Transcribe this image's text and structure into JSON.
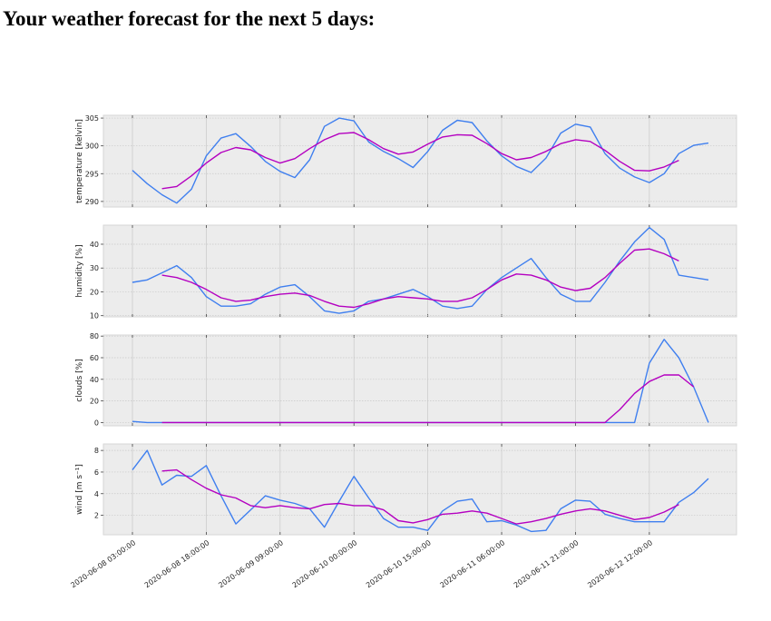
{
  "heading": "Your weather forecast for the next 5 days:",
  "colors": {
    "raw": "#3f7fef",
    "smoothed": "#b400c0",
    "panel_bg": "#ececec",
    "grid": "#c8c8c8"
  },
  "chart_data": {
    "type": "line",
    "x": [
      "2020-06-08 03:00:00",
      "2020-06-08 06:00:00",
      "2020-06-08 09:00:00",
      "2020-06-08 12:00:00",
      "2020-06-08 15:00:00",
      "2020-06-08 18:00:00",
      "2020-06-08 21:00:00",
      "2020-06-09 00:00:00",
      "2020-06-09 03:00:00",
      "2020-06-09 06:00:00",
      "2020-06-09 09:00:00",
      "2020-06-09 12:00:00",
      "2020-06-09 15:00:00",
      "2020-06-09 18:00:00",
      "2020-06-09 21:00:00",
      "2020-06-10 00:00:00",
      "2020-06-10 03:00:00",
      "2020-06-10 06:00:00",
      "2020-06-10 09:00:00",
      "2020-06-10 12:00:00",
      "2020-06-10 15:00:00",
      "2020-06-10 18:00:00",
      "2020-06-10 21:00:00",
      "2020-06-11 00:00:00",
      "2020-06-11 03:00:00",
      "2020-06-11 06:00:00",
      "2020-06-11 09:00:00",
      "2020-06-11 12:00:00",
      "2020-06-11 15:00:00",
      "2020-06-11 18:00:00",
      "2020-06-11 21:00:00",
      "2020-06-12 00:00:00",
      "2020-06-12 03:00:00",
      "2020-06-12 06:00:00",
      "2020-06-12 09:00:00",
      "2020-06-12 12:00:00",
      "2020-06-12 15:00:00",
      "2020-06-12 18:00:00",
      "2020-06-12 21:00:00",
      "2020-06-13 00:00:00"
    ],
    "xtick_labels": [
      "2020-06-08 03:00:00",
      "2020-06-08 18:00:00",
      "2020-06-09 09:00:00",
      "2020-06-10 00:00:00",
      "2020-06-10 15:00:00",
      "2020-06-11 06:00:00",
      "2020-06-11 21:00:00",
      "2020-06-12 12:00:00"
    ],
    "xtick_index": [
      0,
      5,
      10,
      15,
      20,
      25,
      30,
      35
    ],
    "grid": true,
    "subplots": [
      {
        "ylabel": "temperature [kelvin]",
        "ylim": [
          289,
          305.5
        ],
        "yticks": [
          290,
          295,
          300,
          305
        ],
        "raw": [
          295.6,
          293.2,
          291.2,
          289.7,
          292.2,
          298.2,
          301.4,
          302.2,
          299.9,
          297.2,
          295.4,
          294.3,
          297.5,
          303.5,
          305.0,
          304.5,
          300.7,
          299.0,
          297.7,
          296.1,
          299.0,
          302.8,
          304.6,
          304.2,
          300.9,
          298.2,
          296.3,
          295.2,
          297.8,
          302.3,
          303.9,
          303.4,
          298.6,
          296.0,
          294.4,
          293.4,
          295.0,
          298.6,
          300.1,
          300.5
        ],
        "smoothed": [
          null,
          null,
          292.3,
          292.7,
          294.6,
          296.9,
          298.8,
          299.7,
          299.3,
          297.9,
          296.9,
          297.7,
          299.5,
          301.1,
          302.2,
          302.4,
          301.1,
          299.5,
          298.5,
          298.9,
          300.3,
          301.6,
          302.0,
          301.9,
          300.4,
          298.6,
          297.5,
          297.9,
          299.0,
          300.4,
          301.1,
          300.8,
          299.2,
          297.2,
          295.6,
          295.5,
          296.2,
          297.4,
          null,
          null
        ]
      },
      {
        "ylabel": "humidity [%]",
        "ylim": [
          9.5,
          48
        ],
        "yticks": [
          10,
          20,
          30,
          40
        ],
        "raw": [
          24,
          25,
          28,
          31,
          26,
          18,
          14,
          14,
          15,
          19,
          22,
          23,
          18,
          12,
          11,
          12,
          16,
          17,
          19,
          21,
          18,
          14,
          13,
          14,
          21,
          26,
          30,
          34,
          26,
          19,
          16,
          16,
          24,
          33,
          41,
          47,
          42,
          27,
          26,
          25
        ],
        "smoothed": [
          null,
          null,
          27,
          26,
          24,
          21,
          17.5,
          16,
          16.5,
          18,
          19,
          19.5,
          18.5,
          16,
          14,
          13.5,
          15,
          17,
          18,
          17.5,
          17,
          16,
          16,
          17.5,
          21,
          25,
          27.5,
          27,
          25,
          22,
          20.5,
          21.5,
          26,
          32,
          37.5,
          38,
          36,
          33,
          null,
          null
        ]
      },
      {
        "ylabel": "clouds [%]",
        "ylim": [
          -3,
          81
        ],
        "yticks": [
          0,
          20,
          40,
          60,
          80
        ],
        "raw": [
          1,
          0,
          0,
          0,
          0,
          0,
          0,
          0,
          0,
          0,
          0,
          0,
          0,
          0,
          0,
          0,
          0,
          0,
          0,
          0,
          0,
          0,
          0,
          0,
          0,
          0,
          0,
          0,
          0,
          0,
          0,
          0,
          0,
          0,
          0,
          55,
          77,
          60,
          33,
          0
        ],
        "smoothed": [
          null,
          null,
          0,
          0,
          0,
          0,
          0,
          0,
          0,
          0,
          0,
          0,
          0,
          0,
          0,
          0,
          0,
          0,
          0,
          0,
          0,
          0,
          0,
          0,
          0,
          0,
          0,
          0,
          0,
          0,
          0,
          0,
          0,
          12,
          27,
          38,
          44,
          44,
          33,
          null
        ]
      },
      {
        "ylabel": "wind [m s⁻¹]",
        "ylim": [
          0.2,
          8.6
        ],
        "yticks": [
          2,
          4,
          6,
          8
        ],
        "raw": [
          6.2,
          8.0,
          4.8,
          5.7,
          5.6,
          6.6,
          3.8,
          1.2,
          2.5,
          3.8,
          3.4,
          3.1,
          2.6,
          0.9,
          3.3,
          5.6,
          3.6,
          1.7,
          0.9,
          0.9,
          0.6,
          2.4,
          3.3,
          3.5,
          1.4,
          1.5,
          1.1,
          0.5,
          0.6,
          2.6,
          3.4,
          3.3,
          2.1,
          1.7,
          1.4,
          1.4,
          1.4,
          3.2,
          4.1,
          5.4
        ],
        "smoothed": [
          null,
          null,
          6.1,
          6.2,
          5.3,
          4.5,
          3.9,
          3.6,
          2.9,
          2.7,
          2.9,
          2.7,
          2.6,
          3.0,
          3.1,
          2.9,
          2.9,
          2.5,
          1.5,
          1.3,
          1.6,
          2.1,
          2.2,
          2.4,
          2.2,
          1.7,
          1.2,
          1.4,
          1.7,
          2.1,
          2.4,
          2.6,
          2.4,
          2.0,
          1.6,
          1.8,
          2.3,
          3.0,
          null,
          null
        ]
      }
    ]
  }
}
